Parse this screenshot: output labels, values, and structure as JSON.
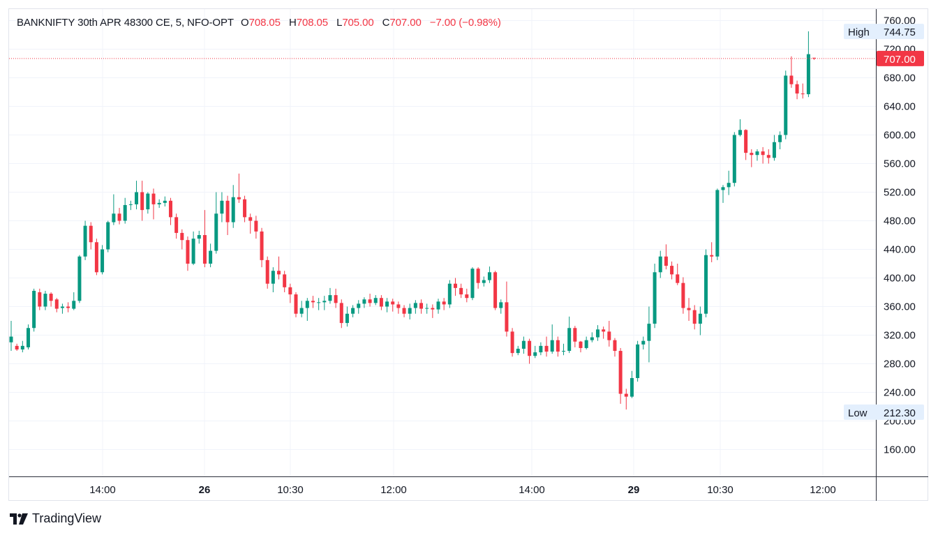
{
  "legend": {
    "symbol": "BANKNIFTY 30th APR 48300 CE, 5, NFO-OPT",
    "open_label": "O",
    "open": "708.05",
    "high_label": "H",
    "high": "708.05",
    "low_label": "L",
    "low": "705.00",
    "close_label": "C",
    "close": "707.00",
    "change": "−7.00 (−0.98%)"
  },
  "price_axis": {
    "ticks": [
      "760.00",
      "720.00",
      "680.00",
      "640.00",
      "600.00",
      "560.00",
      "520.00",
      "480.00",
      "440.00",
      "400.00",
      "360.00",
      "320.00",
      "280.00",
      "240.00",
      "200.00",
      "160.00"
    ],
    "last_price": "707.00",
    "high_label": "High",
    "high_value": "744.75",
    "low_label": "Low",
    "low_value": "212.30"
  },
  "time_axis": {
    "labels": [
      {
        "text": "14:00",
        "bold": false
      },
      {
        "text": "26",
        "bold": true
      },
      {
        "text": "10:30",
        "bold": false
      },
      {
        "text": "12:00",
        "bold": false
      },
      {
        "text": "14:00",
        "bold": false
      },
      {
        "text": "29",
        "bold": true
      },
      {
        "text": "10:30",
        "bold": false
      },
      {
        "text": "12:00",
        "bold": false
      }
    ]
  },
  "brand": "TradingView",
  "colors": {
    "up": "#089981",
    "down": "#f23645",
    "grid": "#f0f3fa",
    "text": "#131722"
  },
  "chart_data": {
    "type": "candlestick",
    "title": "BANKNIFTY 30th APR 48300 CE, 5, NFO-OPT",
    "interval": "5",
    "y_range": [
      140,
      780
    ],
    "y_ticks": [
      760,
      720,
      680,
      640,
      600,
      560,
      520,
      480,
      440,
      400,
      360,
      320,
      280,
      240,
      200,
      160
    ],
    "x_ticks": [
      "14:00",
      "26",
      "10:30",
      "12:00",
      "14:00",
      "29",
      "10:30",
      "12:00"
    ],
    "candles": [
      [
        310,
        318,
        340,
        298
      ],
      [
        305,
        300,
        308,
        298
      ],
      [
        300,
        305,
        312,
        296
      ],
      [
        303,
        330,
        335,
        300
      ],
      [
        330,
        382,
        385,
        325
      ],
      [
        380,
        360,
        385,
        355
      ],
      [
        360,
        378,
        382,
        355
      ],
      [
        378,
        368,
        380,
        360
      ],
      [
        370,
        357,
        372,
        352
      ],
      [
        358,
        360,
        364,
        350
      ],
      [
        360,
        358,
        366,
        352
      ],
      [
        357,
        368,
        380,
        355
      ],
      [
        368,
        430,
        432,
        365
      ],
      [
        430,
        473,
        480,
        425
      ],
      [
        473,
        450,
        478,
        440
      ],
      [
        450,
        408,
        455,
        404
      ],
      [
        408,
        440,
        446,
        405
      ],
      [
        440,
        478,
        480,
        436
      ],
      [
        478,
        490,
        517,
        474
      ],
      [
        490,
        480,
        498,
        475
      ],
      [
        480,
        502,
        512,
        476
      ],
      [
        502,
        503,
        508,
        495
      ],
      [
        503,
        520,
        536,
        496
      ],
      [
        520,
        495,
        536,
        480
      ],
      [
        496,
        518,
        520,
        490
      ],
      [
        518,
        503,
        525,
        482
      ],
      [
        503,
        505,
        510,
        498
      ],
      [
        505,
        508,
        514,
        500
      ],
      [
        508,
        485,
        512,
        474
      ],
      [
        485,
        463,
        490,
        455
      ],
      [
        463,
        453,
        468,
        440
      ],
      [
        453,
        420,
        458,
        410
      ],
      [
        420,
        455,
        465,
        418
      ],
      [
        455,
        460,
        466,
        448
      ],
      [
        460,
        420,
        495,
        415
      ],
      [
        420,
        438,
        448,
        415
      ],
      [
        438,
        490,
        520,
        434
      ],
      [
        490,
        508,
        520,
        478
      ],
      [
        508,
        478,
        515,
        460
      ],
      [
        478,
        513,
        530,
        470
      ],
      [
        513,
        510,
        546,
        505
      ],
      [
        510,
        485,
        515,
        478
      ],
      [
        485,
        480,
        490,
        462
      ],
      [
        480,
        465,
        487,
        455
      ],
      [
        465,
        425,
        470,
        415
      ],
      [
        425,
        392,
        430,
        385
      ],
      [
        392,
        410,
        415,
        380
      ],
      [
        410,
        405,
        430,
        398
      ],
      [
        405,
        387,
        410,
        380
      ],
      [
        387,
        377,
        392,
        365
      ],
      [
        377,
        350,
        380,
        345
      ],
      [
        350,
        358,
        368,
        345
      ],
      [
        358,
        368,
        372,
        340
      ],
      [
        368,
        366,
        375,
        358
      ],
      [
        366,
        366,
        372,
        355
      ],
      [
        366,
        368,
        375,
        355
      ],
      [
        368,
        376,
        386,
        364
      ],
      [
        376,
        365,
        385,
        358
      ],
      [
        365,
        337,
        370,
        330
      ],
      [
        337,
        350,
        360,
        332
      ],
      [
        350,
        358,
        362,
        345
      ],
      [
        358,
        364,
        369,
        350
      ],
      [
        364,
        370,
        373,
        358
      ],
      [
        370,
        365,
        378,
        360
      ],
      [
        365,
        372,
        376,
        362
      ],
      [
        372,
        360,
        376,
        355
      ],
      [
        360,
        367,
        372,
        352
      ],
      [
        367,
        363,
        371,
        353
      ],
      [
        363,
        358,
        367,
        350
      ],
      [
        358,
        350,
        362,
        345
      ],
      [
        350,
        358,
        364,
        342
      ],
      [
        358,
        365,
        369,
        350
      ],
      [
        365,
        357,
        370,
        350
      ],
      [
        357,
        358,
        364,
        350
      ],
      [
        358,
        356,
        363,
        344
      ],
      [
        356,
        367,
        371,
        350
      ],
      [
        367,
        363,
        372,
        355
      ],
      [
        363,
        392,
        397,
        358
      ],
      [
        392,
        386,
        400,
        375
      ],
      [
        386,
        377,
        392,
        372
      ],
      [
        377,
        372,
        385,
        366
      ],
      [
        372,
        413,
        415,
        369
      ],
      [
        413,
        393,
        415,
        385
      ],
      [
        393,
        397,
        402,
        388
      ],
      [
        397,
        408,
        416,
        393
      ],
      [
        408,
        358,
        410,
        355
      ],
      [
        358,
        366,
        370,
        350
      ],
      [
        366,
        325,
        395,
        318
      ],
      [
        325,
        295,
        330,
        290
      ],
      [
        295,
        301,
        305,
        292
      ],
      [
        301,
        312,
        318,
        294
      ],
      [
        312,
        291,
        315,
        280
      ],
      [
        291,
        296,
        305,
        288
      ],
      [
        296,
        305,
        310,
        292
      ],
      [
        305,
        297,
        318,
        290
      ],
      [
        297,
        313,
        335,
        294
      ],
      [
        313,
        297,
        318,
        290
      ],
      [
        297,
        298,
        308,
        292
      ],
      [
        298,
        330,
        346,
        295
      ],
      [
        330,
        311,
        333,
        303
      ],
      [
        311,
        302,
        312,
        296
      ],
      [
        302,
        313,
        318,
        300
      ],
      [
        313,
        317,
        324,
        310
      ],
      [
        317,
        328,
        334,
        312
      ],
      [
        328,
        325,
        332,
        315
      ],
      [
        325,
        313,
        340,
        304
      ],
      [
        313,
        298,
        316,
        290
      ],
      [
        298,
        238,
        302,
        224
      ],
      [
        238,
        234,
        245,
        216
      ],
      [
        234,
        260,
        270,
        232
      ],
      [
        260,
        307,
        312,
        255
      ],
      [
        307,
        312,
        318,
        300
      ],
      [
        312,
        336,
        360,
        282
      ],
      [
        336,
        408,
        420,
        330
      ],
      [
        408,
        430,
        438,
        400
      ],
      [
        430,
        417,
        447,
        412
      ],
      [
        417,
        405,
        423,
        398
      ],
      [
        405,
        393,
        420,
        390
      ],
      [
        393,
        358,
        401,
        350
      ],
      [
        358,
        355,
        372,
        340
      ],
      [
        355,
        336,
        362,
        328
      ],
      [
        336,
        350,
        360,
        320
      ],
      [
        350,
        432,
        440,
        345
      ],
      [
        432,
        430,
        450,
        422
      ],
      [
        430,
        523,
        525,
        425
      ],
      [
        523,
        527,
        530,
        505
      ],
      [
        527,
        533,
        550,
        516
      ],
      [
        533,
        600,
        604,
        528
      ],
      [
        600,
        607,
        622,
        598
      ],
      [
        607,
        575,
        608,
        565
      ],
      [
        575,
        572,
        580,
        555
      ],
      [
        572,
        577,
        580,
        564
      ],
      [
        577,
        572,
        583,
        560
      ],
      [
        572,
        568,
        580,
        560
      ],
      [
        568,
        590,
        600,
        564
      ],
      [
        590,
        600,
        605,
        580
      ],
      [
        600,
        683,
        690,
        594
      ],
      [
        683,
        671,
        710,
        666
      ],
      [
        671,
        658,
        676,
        650
      ],
      [
        658,
        657,
        672,
        651
      ],
      [
        657,
        713,
        745,
        653
      ],
      [
        708,
        707,
        708,
        705
      ]
    ]
  }
}
